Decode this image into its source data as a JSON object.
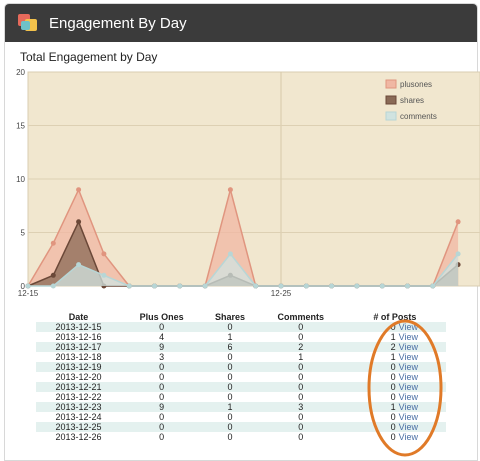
{
  "header": {
    "title": "Engagement By Day"
  },
  "chart_data": {
    "type": "area",
    "title": "Total Engagement by Day",
    "ylim": [
      0,
      20
    ],
    "yticks": [
      0,
      5,
      10,
      15,
      20
    ],
    "xtick_labels": [
      {
        "index": 0,
        "label": "12-15"
      },
      {
        "index": 10,
        "label": "12-25"
      }
    ],
    "x_count": 18,
    "legend_position": "top-right",
    "grid": true,
    "series": [
      {
        "name": "plusones",
        "color": "#e0957f",
        "fill": "#f0b7a3",
        "values": [
          0,
          4,
          9,
          3,
          0,
          0,
          0,
          0,
          9,
          0,
          0,
          0,
          0,
          0,
          0,
          0,
          0,
          6
        ]
      },
      {
        "name": "shares",
        "color": "#6b4838",
        "fill": "#8a6a56",
        "values": [
          0,
          1,
          6,
          0,
          0,
          0,
          0,
          0,
          1,
          0,
          0,
          0,
          0,
          0,
          0,
          0,
          0,
          2
        ]
      },
      {
        "name": "comments",
        "color": "#b7d6d6",
        "fill": "#d0e3e0",
        "values": [
          0,
          0,
          2,
          1,
          0,
          0,
          0,
          0,
          3,
          0,
          0,
          0,
          0,
          0,
          0,
          0,
          0,
          3
        ]
      }
    ]
  },
  "table": {
    "headers": [
      "Date",
      "Plus Ones",
      "Shares",
      "Comments",
      "# of Posts"
    ],
    "view_label": "View",
    "rows": [
      {
        "date": "2013-12-15",
        "plus": "0",
        "shares": "0",
        "comments": "0",
        "posts": "0"
      },
      {
        "date": "2013-12-16",
        "plus": "4",
        "shares": "1",
        "comments": "0",
        "posts": "1"
      },
      {
        "date": "2013-12-17",
        "plus": "9",
        "shares": "6",
        "comments": "2",
        "posts": "2"
      },
      {
        "date": "2013-12-18",
        "plus": "3",
        "shares": "0",
        "comments": "1",
        "posts": "1"
      },
      {
        "date": "2013-12-19",
        "plus": "0",
        "shares": "0",
        "comments": "0",
        "posts": "0"
      },
      {
        "date": "2013-12-20",
        "plus": "0",
        "shares": "0",
        "comments": "0",
        "posts": "0"
      },
      {
        "date": "2013-12-21",
        "plus": "0",
        "shares": "0",
        "comments": "0",
        "posts": "0"
      },
      {
        "date": "2013-12-22",
        "plus": "0",
        "shares": "0",
        "comments": "0",
        "posts": "0"
      },
      {
        "date": "2013-12-23",
        "plus": "9",
        "shares": "1",
        "comments": "3",
        "posts": "1"
      },
      {
        "date": "2013-12-24",
        "plus": "0",
        "shares": "0",
        "comments": "0",
        "posts": "0"
      },
      {
        "date": "2013-12-25",
        "plus": "0",
        "shares": "0",
        "comments": "0",
        "posts": "0"
      },
      {
        "date": "2013-12-26",
        "plus": "0",
        "shares": "0",
        "comments": "0",
        "posts": "0"
      }
    ]
  },
  "annotation": {
    "color": "#e07a28"
  }
}
